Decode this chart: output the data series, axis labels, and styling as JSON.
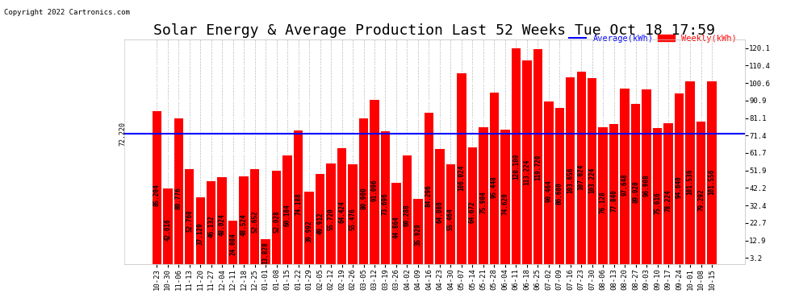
{
  "title": "Solar Energy & Average Production Last 52 Weeks Tue Oct 18 17:59",
  "copyright": "Copyright 2022 Cartronics.com",
  "legend_labels": [
    "Average(kWh)",
    "Weekly(kWh)"
  ],
  "legend_colors": [
    "blue",
    "red"
  ],
  "average_line": 72.22,
  "average_label": "72.220",
  "bar_color": "#ff0000",
  "background_color": "#ffffff",
  "grid_color": "#bbbbbb",
  "ylim": [
    0,
    125
  ],
  "yticks": [
    3.2,
    12.9,
    22.7,
    32.4,
    42.2,
    51.9,
    61.7,
    71.4,
    81.1,
    90.9,
    100.6,
    110.4,
    120.1
  ],
  "categories": [
    "10-23",
    "10-30",
    "11-06",
    "11-13",
    "11-20",
    "11-27",
    "12-04",
    "12-11",
    "12-18",
    "12-25",
    "01-01",
    "01-08",
    "01-15",
    "01-22",
    "01-29",
    "02-05",
    "02-12",
    "02-19",
    "02-26",
    "03-05",
    "03-12",
    "03-19",
    "03-26",
    "04-02",
    "04-09",
    "04-16",
    "04-23",
    "04-30",
    "05-07",
    "05-14",
    "05-21",
    "05-28",
    "06-04",
    "06-11",
    "06-18",
    "06-25",
    "07-02",
    "07-09",
    "07-16",
    "07-23",
    "07-30",
    "08-06",
    "08-13",
    "08-20",
    "08-27",
    "09-03",
    "09-10",
    "09-17",
    "09-24",
    "10-01",
    "10-08",
    "10-15"
  ],
  "bar_labels": [
    "85.204",
    "42.016",
    "80.776",
    "52.760",
    "37.120",
    "46.132",
    "48.024",
    "24.084",
    "48.524",
    "52.652",
    "13.828",
    "52.028",
    "60.184",
    "74.188",
    "39.992",
    "49.912",
    "55.720",
    "64.424",
    "55.476",
    "80.900",
    "91.096",
    "73.696",
    "44.864",
    "60.288",
    "35.920",
    "84.296",
    "64.080",
    "55.464",
    "106.024",
    "64.672",
    "75.904",
    "95.448",
    "74.620",
    "120.100",
    "113.224",
    "119.720",
    "90.464",
    "86.680",
    "103.656",
    "107.024",
    "103.224",
    "76.128",
    "77.840",
    "97.648",
    "89.020",
    "96.908",
    "75.616",
    "78.224",
    "94.640",
    "101.536",
    "79.292",
    "101.556"
  ],
  "title_fontsize": 13,
  "tick_fontsize": 6.5,
  "label_fontsize": 5.5
}
